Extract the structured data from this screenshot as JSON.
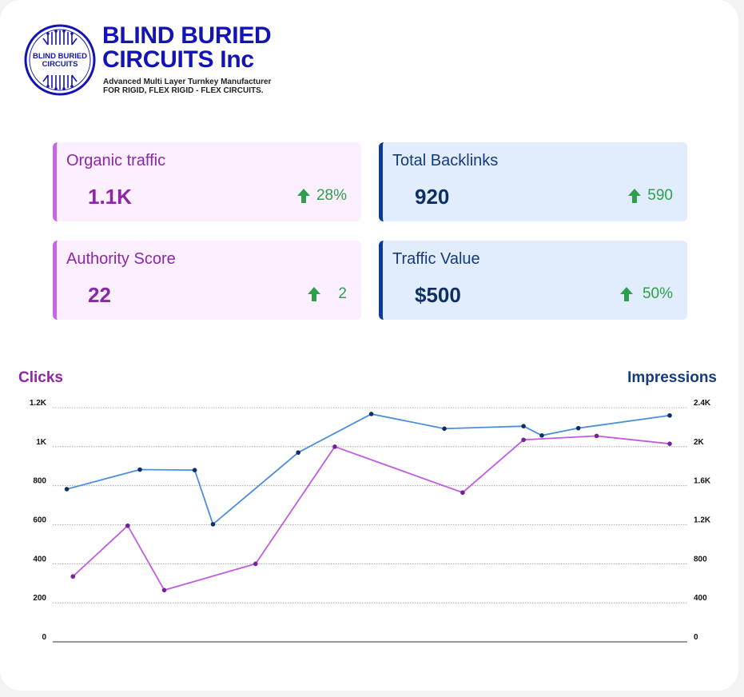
{
  "brand": {
    "logo_text_line1": "BLIND BURIED",
    "logo_text_line2": "CIRCUITS",
    "title_line1": "BLIND BURIED",
    "title_line2": "CIRCUITS Inc",
    "tagline_line1": "Advanced Multi Layer Turnkey Manufacturer",
    "tagline_line2": "FOR RIGID, FLEX RIGID - FLEX CIRCUITS."
  },
  "kpis": [
    {
      "label": "Organic traffic",
      "value": "1.1K",
      "delta": "28%",
      "trend": "up",
      "theme": "pink"
    },
    {
      "label": "Total Backlinks",
      "value": "920",
      "delta": "590",
      "trend": "up",
      "theme": "blue"
    },
    {
      "label": "Authority Score",
      "value": "22",
      "delta": "2",
      "trend": "up",
      "theme": "pink"
    },
    {
      "label": "Traffic Value",
      "value": "$500",
      "delta": "50%",
      "trend": "up",
      "theme": "blue"
    }
  ],
  "colors": {
    "clicks": "#c15ce0",
    "impressions": "#4a8fdc",
    "clicks_marker": "#7a1f9a",
    "impressions_marker": "#0c2f6a",
    "up": "#2ea04b"
  },
  "chart_data": {
    "type": "line",
    "left_axis_title": "Clicks",
    "right_axis_title": "Impressions",
    "left_ticks": [
      "0",
      "200",
      "400",
      "600",
      "800",
      "1K",
      "1.2K"
    ],
    "right_ticks": [
      "0",
      "400",
      "800",
      "1.2K",
      "1.6K",
      "2K",
      "2.4K"
    ],
    "ylim_left": [
      0,
      1200
    ],
    "ylim_right": [
      0,
      2400
    ],
    "grid": true,
    "series": [
      {
        "name": "Clicks",
        "axis": "left",
        "x": [
          0.02,
          0.11,
          0.17,
          0.32,
          0.45,
          0.66,
          0.76,
          0.88,
          1.0
        ],
        "values": [
          335,
          595,
          265,
          400,
          1000,
          765,
          1035,
          1055,
          1015
        ]
      },
      {
        "name": "Impressions",
        "axis": "right",
        "x": [
          0.01,
          0.13,
          0.22,
          0.25,
          0.39,
          0.51,
          0.63,
          0.76,
          0.79,
          0.85,
          1.0
        ],
        "values": [
          1565,
          1765,
          1760,
          1205,
          1940,
          2335,
          2185,
          2210,
          2115,
          2190,
          2320
        ]
      }
    ]
  }
}
